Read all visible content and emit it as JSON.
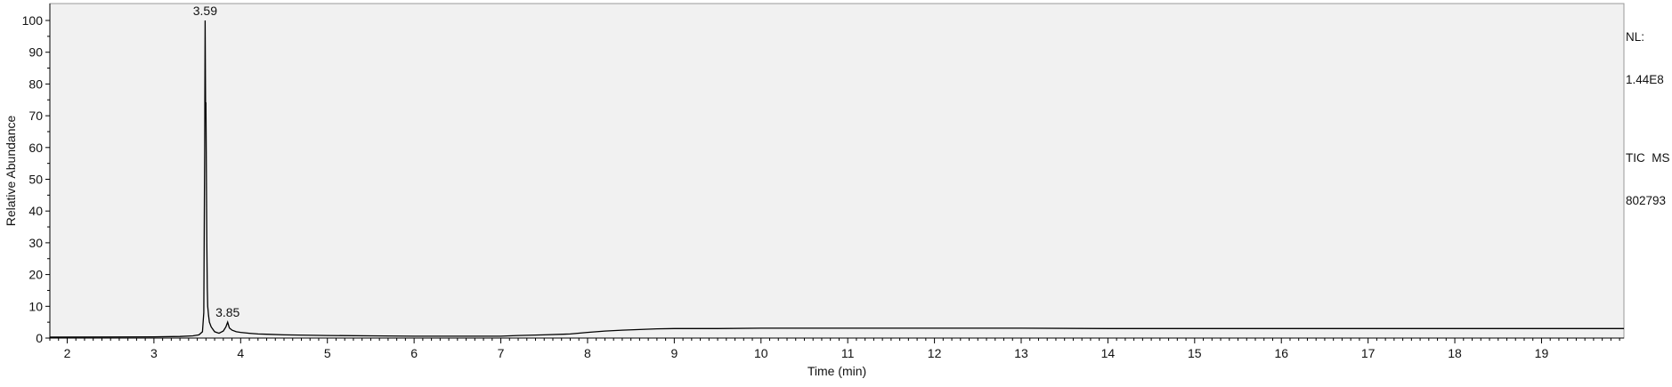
{
  "chart_data": {
    "type": "line",
    "xlabel": "Time (min)",
    "ylabel": "Relative Abundance",
    "xlim": [
      1.8,
      19.95
    ],
    "ylim": [
      0,
      100
    ],
    "x_ticks": [
      2,
      3,
      4,
      5,
      6,
      7,
      8,
      9,
      10,
      11,
      12,
      13,
      14,
      15,
      16,
      17,
      18,
      19
    ],
    "y_ticks": [
      0,
      10,
      20,
      30,
      40,
      50,
      60,
      70,
      80,
      90,
      100
    ],
    "grid": false,
    "plot_background": "#f1f1f1",
    "line_color": "#000000",
    "series": [
      {
        "x": [
          1.8,
          3.0,
          3.3,
          3.45,
          3.52,
          3.56,
          3.575,
          3.585,
          3.59,
          3.595,
          3.6,
          3.605,
          3.61,
          3.615,
          3.62,
          3.63,
          3.64,
          3.66,
          3.7,
          3.75,
          3.8,
          3.83,
          3.85,
          3.87,
          3.9,
          3.95,
          4.0,
          4.1,
          4.2,
          4.3,
          4.5,
          5.0,
          5.5,
          6.0,
          6.5,
          7.0,
          7.2,
          7.5,
          7.8,
          8.0,
          8.2,
          8.4,
          8.6,
          8.8,
          9.0,
          9.5,
          10.0,
          10.5,
          11.0,
          12.0,
          13.0,
          14.0,
          15.0,
          16.0,
          17.0,
          18.0,
          19.0,
          19.95
        ],
        "y": [
          0.3,
          0.4,
          0.5,
          0.7,
          1.0,
          2.0,
          8.0,
          60.0,
          100.0,
          74.0,
          74.0,
          52.0,
          30.0,
          16.0,
          10.0,
          7.0,
          5.0,
          3.5,
          2.0,
          1.5,
          2.2,
          3.5,
          5.0,
          3.2,
          2.5,
          2.0,
          1.8,
          1.5,
          1.3,
          1.2,
          1.0,
          0.8,
          0.7,
          0.6,
          0.6,
          0.6,
          0.8,
          1.0,
          1.3,
          1.8,
          2.2,
          2.5,
          2.7,
          2.9,
          3.0,
          3.0,
          3.1,
          3.1,
          3.1,
          3.1,
          3.1,
          3.0,
          3.0,
          3.0,
          3.0,
          3.0,
          3.0,
          3.0
        ]
      }
    ],
    "peak_labels": [
      {
        "x": 3.59,
        "y": 100,
        "text": "3.59"
      },
      {
        "x": 3.85,
        "y": 5,
        "text": "3.85"
      }
    ]
  },
  "info": {
    "nl_label": "NL:",
    "nl_value": "1.44E8",
    "trace": "TIC  MS",
    "sample": "802793"
  }
}
